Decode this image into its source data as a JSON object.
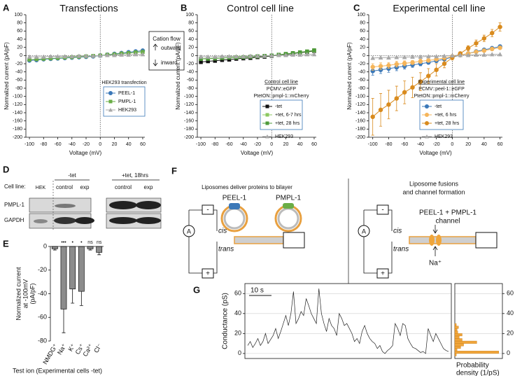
{
  "panels": [
    "A",
    "B",
    "C",
    "D",
    "E",
    "F",
    "G"
  ],
  "chart_data": [
    {
      "type": "line",
      "title": "Transfections",
      "xlabel": "Voltage (mV)",
      "ylabel": "Normalized current (pA/pF)",
      "x": [
        -100,
        -90,
        -80,
        -70,
        -60,
        -50,
        -40,
        -30,
        -20,
        -10,
        0,
        10,
        20,
        30,
        40,
        50,
        60
      ],
      "xlim": [
        -105,
        63
      ],
      "xticks": [
        -100,
        -80,
        -60,
        -40,
        -20,
        0,
        20,
        40,
        60
      ],
      "ylim": [
        -200,
        100
      ],
      "yticks": [
        100,
        80,
        60,
        40,
        20,
        0,
        -20,
        -40,
        -60,
        -80,
        -100,
        -120,
        -140,
        -160,
        -180,
        -200
      ],
      "legend_title": [
        "HEK293 transfection"
      ],
      "flow": {
        "title": "Cation flow",
        "up": "outward",
        "down": "inward"
      },
      "series": [
        {
          "name": "PEEL-1",
          "color": "#3b78b8",
          "marker": "circle",
          "values": [
            -12,
            -11,
            -9,
            -8,
            -7,
            -6,
            -5,
            -4,
            -3,
            -2,
            0,
            2,
            4,
            6,
            8,
            10,
            12
          ]
        },
        {
          "name": "PMPL-1",
          "color": "#6aad46",
          "marker": "square",
          "values": [
            -10,
            -9,
            -8,
            -7,
            -6,
            -5,
            -4,
            -3,
            -2,
            -1,
            0,
            2,
            3,
            5,
            6,
            8,
            9
          ]
        },
        {
          "name": "HEK293",
          "color": "#a8a8a8",
          "marker": "triangle",
          "values": [
            -3,
            -3,
            -3,
            -2,
            -2,
            -2,
            -2,
            -1,
            -1,
            -1,
            0,
            1,
            1,
            2,
            2,
            3,
            3
          ]
        }
      ]
    },
    {
      "type": "line",
      "title": "Control cell line",
      "xlabel": "Voltage (mV)",
      "ylabel": "Normalized current (pA/pF)",
      "x": [
        -100,
        -90,
        -80,
        -70,
        -60,
        -50,
        -40,
        -30,
        -20,
        -10,
        0,
        10,
        20,
        30,
        40,
        50,
        60
      ],
      "xlim": [
        -105,
        63
      ],
      "xticks": [
        -100,
        -80,
        -60,
        -40,
        -20,
        0,
        20,
        40,
        60
      ],
      "ylim": [
        -200,
        100
      ],
      "yticks": [
        100,
        80,
        60,
        40,
        20,
        0,
        -20,
        -40,
        -60,
        -80,
        -100,
        -120,
        -140,
        -160,
        -180,
        -200
      ],
      "legend_title": [
        "Control cell line",
        "PCMV::eGFP",
        "PtetON::pmpl-1::mCherry"
      ],
      "series": [
        {
          "name": "-tet",
          "color": "#111111",
          "marker": "square",
          "values": [
            -16,
            -14,
            -13,
            -11,
            -10,
            -8,
            -7,
            -6,
            -4,
            -3,
            -1,
            1,
            3,
            5,
            7,
            9,
            11
          ]
        },
        {
          "name": "+tet, 6-7 hrs",
          "color": "#8cc860",
          "marker": "square",
          "values": [
            -8,
            -7,
            -7,
            -6,
            -5,
            -4,
            -4,
            -3,
            -2,
            -1,
            0,
            2,
            4,
            6,
            8,
            10,
            12
          ]
        },
        {
          "name": "+tet, 28 hrs",
          "color": "#4e9a3a",
          "marker": "square",
          "values": [
            -8,
            -8,
            -7,
            -6,
            -5,
            -5,
            -4,
            -3,
            -2,
            -1,
            0,
            2,
            4,
            6,
            8,
            10,
            13
          ]
        },
        {
          "name": "HEK293",
          "color": "#a8a8a8",
          "marker": "triangle",
          "values": [
            -3,
            -3,
            -3,
            -2,
            -2,
            -2,
            -2,
            -1,
            -1,
            -1,
            0,
            1,
            1,
            2,
            2,
            3,
            3
          ]
        }
      ]
    },
    {
      "type": "line",
      "title": "Experimental cell line",
      "xlabel": "Voltage (mV)",
      "ylabel": "Normalized current (pA/pF)",
      "x": [
        -100,
        -90,
        -80,
        -70,
        -60,
        -50,
        -40,
        -30,
        -20,
        -10,
        0,
        10,
        20,
        30,
        40,
        50,
        60
      ],
      "xlim": [
        -105,
        63
      ],
      "xticks": [
        -100,
        -80,
        -60,
        -40,
        -20,
        0,
        20,
        40,
        60
      ],
      "ylim": [
        -200,
        100
      ],
      "yticks": [
        100,
        80,
        60,
        40,
        20,
        0,
        -20,
        -40,
        -60,
        -80,
        -100,
        -120,
        -140,
        -160,
        -180,
        -200
      ],
      "legend_title": [
        "Experimental cell line",
        "PCMV::peel-1::eGFP",
        "PtetON::pmpl-1::mCherry"
      ],
      "series": [
        {
          "name": "-tet",
          "color": "#3b78b8",
          "marker": "circle",
          "values": [
            -38,
            -35,
            -32,
            -29,
            -26,
            -23,
            -20,
            -17,
            -13,
            -9,
            -4,
            1,
            5,
            10,
            14,
            18,
            22
          ],
          "errors": [
            10,
            9,
            9,
            8,
            7,
            6,
            5,
            4,
            3,
            2,
            2,
            2,
            2,
            3,
            3,
            3,
            4
          ]
        },
        {
          "name": "+tet, 6 hrs",
          "color": "#f5b55a",
          "marker": "circle",
          "values": [
            -28,
            -26,
            -24,
            -21,
            -19,
            -17,
            -14,
            -12,
            -9,
            -6,
            -2,
            1,
            5,
            9,
            12,
            16,
            19
          ],
          "errors": [
            8,
            8,
            7,
            7,
            6,
            5,
            5,
            4,
            3,
            2,
            2,
            2,
            2,
            3,
            3,
            4,
            4
          ]
        },
        {
          "name": "+tet, 28 hrs",
          "color": "#d98b1e",
          "marker": "circle",
          "values": [
            -150,
            -133,
            -120,
            -105,
            -90,
            -78,
            -64,
            -50,
            -35,
            -20,
            -5,
            5,
            18,
            30,
            42,
            55,
            70
          ],
          "errors": [
            45,
            40,
            35,
            30,
            28,
            25,
            22,
            18,
            15,
            10,
            6,
            4,
            6,
            8,
            8,
            9,
            10
          ]
        },
        {
          "name": "HEK293",
          "color": "#a8a8a8",
          "marker": "triangle",
          "values": [
            -6,
            -5,
            -5,
            -4,
            -4,
            -3,
            -3,
            -2,
            -2,
            -1,
            0,
            1,
            1,
            2,
            2,
            3,
            3
          ]
        }
      ]
    },
    {
      "type": "bar",
      "ylabel": [
        "Normalized current",
        "at -100mV",
        "(pA/pF)"
      ],
      "xlabel": "Test ion (Experimental cells -tet)",
      "categories": [
        "NMDG⁺",
        "Na⁺",
        "K⁺",
        "Cs⁺",
        "Ca²⁺",
        "Cl⁻"
      ],
      "values": [
        -2,
        -53,
        -36,
        -38,
        -2,
        -5
      ],
      "errors": [
        1,
        20,
        12,
        12,
        1,
        2
      ],
      "annotations": [
        null,
        "•••",
        "•",
        "•",
        "ns",
        "ns"
      ],
      "color": "#8c8c8c",
      "ylim": [
        -80,
        0
      ],
      "yticks": [
        0,
        -20,
        -40,
        -60,
        -80
      ]
    },
    {
      "type": "trace",
      "ylabel": "Conductance (pS)",
      "scale_bar": "10 s",
      "color": "#222222",
      "grid": true,
      "ylim": [
        -5,
        70
      ],
      "yticks": [
        0,
        20,
        40,
        60
      ],
      "values": [
        8,
        12,
        6,
        10,
        15,
        8,
        12,
        20,
        10,
        14,
        18,
        25,
        15,
        22,
        30,
        38,
        28,
        40,
        62,
        30,
        35,
        42,
        38,
        55,
        48,
        40,
        35,
        30,
        65,
        40,
        30,
        22,
        35,
        28,
        25,
        18,
        40,
        35,
        28,
        30,
        25,
        20,
        12,
        15,
        10,
        22,
        28,
        20,
        15,
        12,
        10,
        5,
        8,
        2,
        0,
        3,
        5,
        8,
        30,
        25,
        18,
        30,
        28,
        15,
        10,
        6,
        5,
        3,
        1,
        2,
        0,
        25,
        18,
        12,
        20,
        15,
        10,
        5,
        3,
        2
      ]
    },
    {
      "type": "histogram",
      "orientation": "horizontal",
      "xlabel": [
        "Probability",
        "density (1/pS)"
      ],
      "color": "#f0a53a",
      "grid": true,
      "bins": [
        -2.5,
        0,
        2.5,
        5,
        7.5,
        10,
        12.5,
        15,
        17.5,
        20,
        22.5,
        25,
        27.5,
        30
      ],
      "counts": [
        0.002,
        0.06,
        0.003,
        0.008,
        0.012,
        0.03,
        0.01,
        0.006,
        0.01,
        0.004,
        0.003,
        0.005,
        0.002
      ],
      "xlim": [
        0,
        0.065
      ],
      "ylim": [
        -5,
        70
      ],
      "yticks": [
        0,
        20,
        40,
        60
      ]
    }
  ],
  "blot": {
    "groups": [
      "-tet",
      "+tet, 18hrs"
    ],
    "row_label": "Cell line:",
    "lanes": [
      "HEK",
      "control",
      "exp",
      "control",
      "exp"
    ],
    "rows": [
      "PMPL-1",
      "GAPDH"
    ]
  },
  "diagram": {
    "left_title": "Liposomes deliver proteins to bilayer",
    "proteins": [
      "PEEL-1",
      "PMPL-1"
    ],
    "right_title": [
      "Liposome fusions",
      "and channel formation"
    ],
    "channel": [
      "PEEL-1 + PMPL-1",
      "channel"
    ],
    "cis": "cis",
    "trans": "trans",
    "ion": "Na⁺",
    "amp": "A",
    "minus": "-",
    "plus": "+"
  }
}
